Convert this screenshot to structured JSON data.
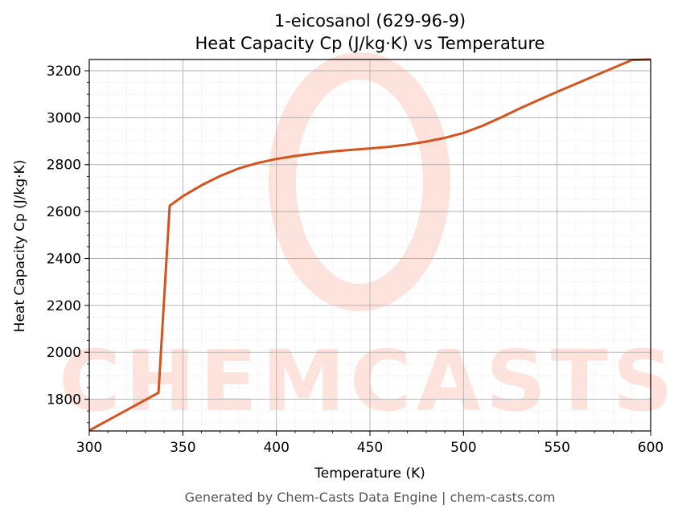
{
  "chart_data": {
    "type": "line",
    "title_line1": "1-eicosanol (629-96-9)",
    "title_line2": "Heat Capacity Cp (J/kg·K) vs Temperature",
    "xlabel": "Temperature (K)",
    "ylabel": "Heat Capacity Cp (J/kg·K)",
    "xlim": [
      300,
      600
    ],
    "ylim": [
      1665,
      3248
    ],
    "x_ticks": [
      300,
      350,
      400,
      450,
      500,
      550,
      600
    ],
    "y_ticks": [
      1800,
      2000,
      2200,
      2400,
      2600,
      2800,
      3000,
      3200
    ],
    "grid": true,
    "line_color": "#d4541f",
    "series": [
      {
        "x": [
          300,
          337,
          343,
          350,
          360,
          370,
          380,
          390,
          400,
          410,
          420,
          430,
          440,
          450,
          460,
          470,
          480,
          490,
          500,
          510,
          520,
          530,
          540,
          550,
          560,
          570,
          580,
          590,
          600
        ],
        "values": [
          1667,
          1828,
          2625,
          2665,
          2712,
          2752,
          2784,
          2807,
          2824,
          2837,
          2847,
          2856,
          2863,
          2869,
          2876,
          2885,
          2898,
          2914,
          2935,
          2965,
          3001,
          3039,
          3075,
          3110,
          3144,
          3178,
          3212,
          3246,
          3248
        ]
      }
    ]
  },
  "watermark": {
    "text": "CHEMCASTS",
    "color": "#fde3dc"
  },
  "footer": "Generated by Chem-Casts Data Engine | chem-casts.com"
}
